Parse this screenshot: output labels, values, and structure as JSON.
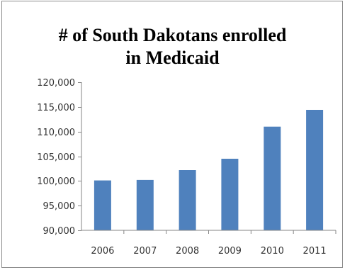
{
  "chart_data": {
    "type": "bar",
    "title_lines": [
      "# of South Dakotans enrolled",
      "in Medicaid"
    ],
    "xlabel": "",
    "ylabel": "",
    "categories": [
      "2006",
      "2007",
      "2008",
      "2009",
      "2010",
      "2011"
    ],
    "values": [
      100100,
      100200,
      102200,
      104500,
      111000,
      114400
    ],
    "ylim": [
      90000,
      120000
    ],
    "yticks": [
      90000,
      95000,
      100000,
      105000,
      110000,
      115000,
      120000
    ],
    "ytick_labels": [
      "90,000",
      "95,000",
      "100,000",
      "105,000",
      "110,000",
      "115,000",
      "120,000"
    ],
    "grid": false,
    "legend": "none",
    "bar_color": "#4f81bd",
    "axis_color": "#868686"
  }
}
